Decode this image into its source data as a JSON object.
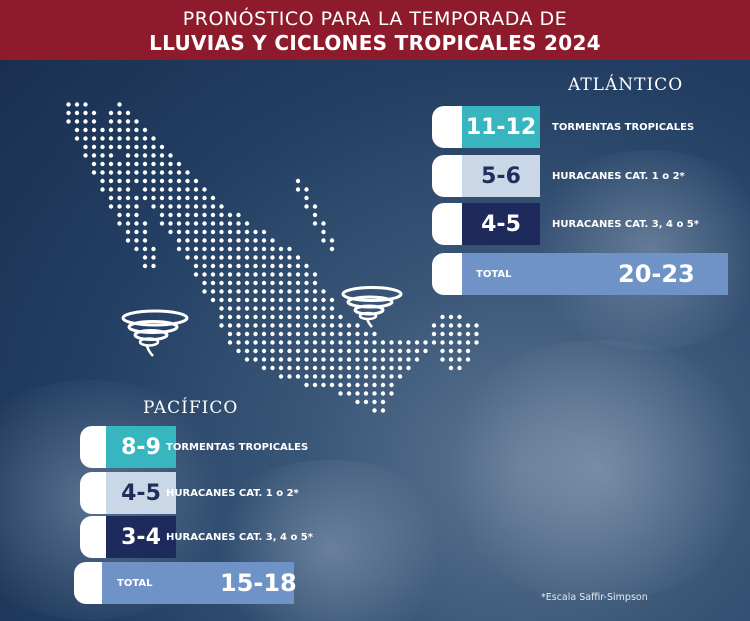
{
  "header": {
    "line1": "PRONÓSTICO PARA LA TEMPORADA DE",
    "line2": "LLUVIAS Y CICLONES TROPICALES 2024"
  },
  "atlantico": {
    "title": "ATLÁNTICO",
    "rows": [
      {
        "value": "11-12",
        "label": "TORMENTAS TROPICALES"
      },
      {
        "value": "5-6",
        "label": "HURACANES CAT. 1 o 2*"
      },
      {
        "value": "4-5",
        "label": "HURACANES CAT. 3, 4 o 5*"
      }
    ],
    "total_label": "TOTAL",
    "total_value": "20-23"
  },
  "pacifico": {
    "title": "PACÍFICO",
    "rows": [
      {
        "value": "8-9",
        "label": "TORMENTAS TROPICALES"
      },
      {
        "value": "4-5",
        "label": "HURACANES CAT. 1 o 2*"
      },
      {
        "value": "3-4",
        "label": "HURACANES CAT. 3, 4 o 5*"
      }
    ],
    "total_label": "TOTAL",
    "total_value": "15-18"
  },
  "footnote": "*Escala Saffir-Simpson",
  "colors": {
    "header_bg": "#8e1b2c",
    "tropical_storm": "#37b6c0",
    "hurricane_minor": "#c9d7e6",
    "hurricane_major": "#1f2a5c",
    "total_bar": "#6f93c6"
  },
  "icons": [
    "mexico-dot-map",
    "hurricane-icon-pacific",
    "hurricane-icon-atlantic"
  ]
}
